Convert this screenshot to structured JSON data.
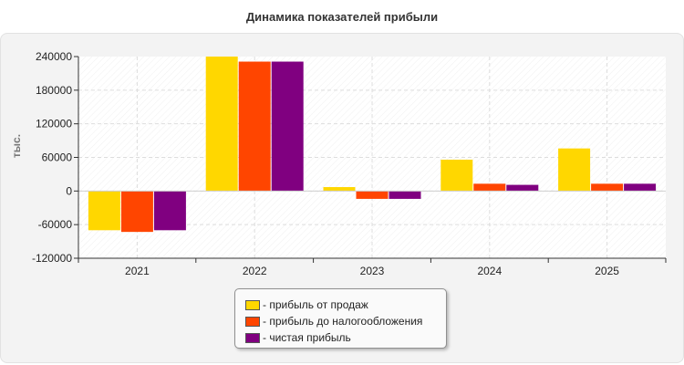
{
  "chart_data": {
    "type": "bar",
    "title": "Динамика показателей прибыли",
    "ylabel": "тыс.",
    "xlabel": "",
    "categories": [
      "2021",
      "2022",
      "2023",
      "2024",
      "2025"
    ],
    "ylim": [
      -120000,
      240000
    ],
    "yticks": [
      240000,
      180000,
      120000,
      60000,
      0,
      -60000,
      -120000
    ],
    "grid": true,
    "legend_position": "bottom",
    "series": [
      {
        "name": "прибыль от продаж",
        "color": "#FFD700",
        "values": [
          -70000,
          240000,
          7000,
          56000,
          76000
        ]
      },
      {
        "name": "прибыль до налогообложения",
        "color": "#FF4500",
        "values": [
          -73000,
          231000,
          -14000,
          13000,
          13000
        ]
      },
      {
        "name": "чистая прибыль",
        "color": "#800080",
        "values": [
          -70000,
          231000,
          -14000,
          11000,
          13000
        ]
      }
    ]
  },
  "legend": {
    "items": [
      {
        "label": "- прибыль от продаж",
        "color": "#FFD700"
      },
      {
        "label": "- прибыль до налогообложения",
        "color": "#FF4500"
      },
      {
        "label": "- чистая прибыль",
        "color": "#800080"
      }
    ]
  }
}
